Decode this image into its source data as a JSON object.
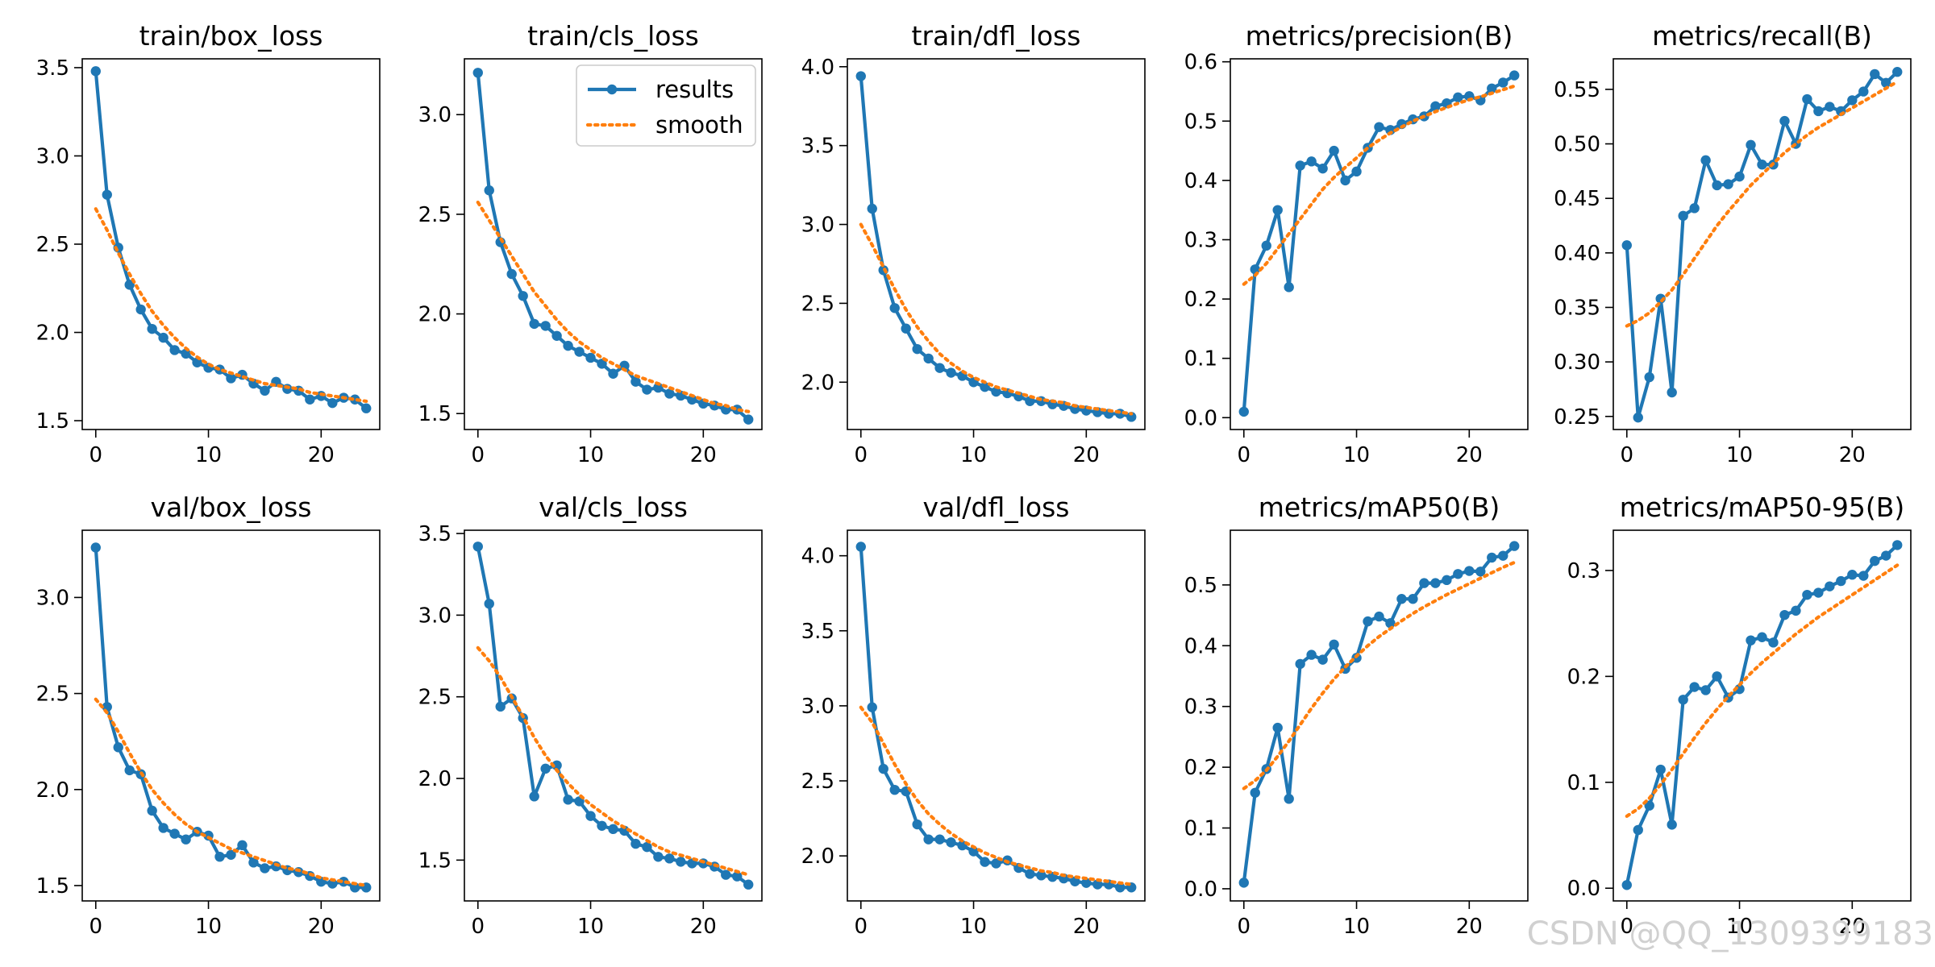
{
  "watermark": "CSDN @QQ_1309399183",
  "colors": {
    "results": "#1f77b4",
    "smooth": "#ff7f0e",
    "axis": "#000000"
  },
  "chart_data": [
    {
      "type": "line",
      "title": "train/box_loss",
      "x": [
        0,
        1,
        2,
        3,
        4,
        5,
        6,
        7,
        8,
        9,
        10,
        11,
        12,
        13,
        14,
        15,
        16,
        17,
        18,
        19,
        20,
        21,
        22,
        23,
        24
      ],
      "ylim": [
        1.45,
        3.55
      ],
      "yticks": [
        "1.5",
        "2.0",
        "2.5",
        "3.0",
        "3.5"
      ],
      "xticks": [
        "0",
        "10",
        "20"
      ],
      "series": [
        {
          "name": "results",
          "values": [
            3.48,
            2.78,
            2.48,
            2.27,
            2.13,
            2.02,
            1.97,
            1.9,
            1.88,
            1.83,
            1.8,
            1.79,
            1.74,
            1.76,
            1.71,
            1.67,
            1.72,
            1.68,
            1.67,
            1.62,
            1.64,
            1.6,
            1.63,
            1.62,
            1.57
          ]
        },
        {
          "name": "smooth",
          "values": [
            2.7,
            2.58,
            2.45,
            2.33,
            2.22,
            2.12,
            2.04,
            1.97,
            1.91,
            1.86,
            1.82,
            1.79,
            1.77,
            1.75,
            1.73,
            1.71,
            1.7,
            1.69,
            1.68,
            1.66,
            1.65,
            1.64,
            1.63,
            1.62,
            1.61
          ]
        }
      ],
      "legend": null
    },
    {
      "type": "line",
      "title": "train/cls_loss",
      "x": [
        0,
        1,
        2,
        3,
        4,
        5,
        6,
        7,
        8,
        9,
        10,
        11,
        12,
        13,
        14,
        15,
        16,
        17,
        18,
        19,
        20,
        21,
        22,
        23,
        24
      ],
      "ylim": [
        1.42,
        3.28
      ],
      "yticks": [
        "1.5",
        "2.0",
        "2.5",
        "3.0"
      ],
      "xticks": [
        "0",
        "10",
        "20"
      ],
      "series": [
        {
          "name": "results",
          "values": [
            3.21,
            2.62,
            2.36,
            2.2,
            2.09,
            1.95,
            1.94,
            1.89,
            1.84,
            1.81,
            1.78,
            1.75,
            1.7,
            1.74,
            1.66,
            1.62,
            1.63,
            1.6,
            1.59,
            1.57,
            1.55,
            1.54,
            1.52,
            1.52,
            1.47
          ]
        },
        {
          "name": "smooth",
          "values": [
            2.56,
            2.47,
            2.38,
            2.29,
            2.2,
            2.11,
            2.04,
            1.97,
            1.91,
            1.86,
            1.82,
            1.78,
            1.75,
            1.72,
            1.69,
            1.67,
            1.65,
            1.63,
            1.61,
            1.59,
            1.57,
            1.55,
            1.54,
            1.52,
            1.51
          ]
        }
      ],
      "legend": {
        "placement": "top-right",
        "entries": [
          "results",
          "smooth"
        ]
      }
    },
    {
      "type": "line",
      "title": "train/dfl_loss",
      "x": [
        0,
        1,
        2,
        3,
        4,
        5,
        6,
        7,
        8,
        9,
        10,
        11,
        12,
        13,
        14,
        15,
        16,
        17,
        18,
        19,
        20,
        21,
        22,
        23,
        24
      ],
      "ylim": [
        1.7,
        4.05
      ],
      "yticks": [
        "2.0",
        "2.5",
        "3.0",
        "3.5",
        "4.0"
      ],
      "xticks": [
        "0",
        "10",
        "20"
      ],
      "series": [
        {
          "name": "results",
          "values": [
            3.94,
            3.1,
            2.71,
            2.47,
            2.34,
            2.21,
            2.15,
            2.09,
            2.06,
            2.04,
            2.0,
            1.97,
            1.94,
            1.93,
            1.91,
            1.88,
            1.88,
            1.86,
            1.85,
            1.83,
            1.82,
            1.81,
            1.8,
            1.8,
            1.78
          ]
        },
        {
          "name": "smooth",
          "values": [
            3.0,
            2.87,
            2.73,
            2.59,
            2.46,
            2.35,
            2.26,
            2.18,
            2.12,
            2.07,
            2.03,
            2.0,
            1.97,
            1.95,
            1.93,
            1.91,
            1.89,
            1.88,
            1.87,
            1.85,
            1.84,
            1.83,
            1.82,
            1.81,
            1.8
          ]
        }
      ],
      "legend": null
    },
    {
      "type": "line",
      "title": "metrics/precision(B)",
      "x": [
        0,
        1,
        2,
        3,
        4,
        5,
        6,
        7,
        8,
        9,
        10,
        11,
        12,
        13,
        14,
        15,
        16,
        17,
        18,
        19,
        20,
        21,
        22,
        23,
        24
      ],
      "ylim": [
        -0.02,
        0.605
      ],
      "yticks": [
        "0.0",
        "0.1",
        "0.2",
        "0.3",
        "0.4",
        "0.5",
        "0.6"
      ],
      "xticks": [
        "0",
        "10",
        "20"
      ],
      "series": [
        {
          "name": "results",
          "values": [
            0.01,
            0.25,
            0.29,
            0.35,
            0.22,
            0.425,
            0.432,
            0.42,
            0.45,
            0.4,
            0.415,
            0.455,
            0.49,
            0.485,
            0.495,
            0.503,
            0.508,
            0.525,
            0.53,
            0.54,
            0.542,
            0.535,
            0.555,
            0.565,
            0.577
          ]
        },
        {
          "name": "smooth",
          "values": [
            0.225,
            0.24,
            0.26,
            0.285,
            0.31,
            0.335,
            0.36,
            0.385,
            0.405,
            0.422,
            0.438,
            0.455,
            0.468,
            0.48,
            0.49,
            0.5,
            0.508,
            0.516,
            0.523,
            0.53,
            0.536,
            0.541,
            0.547,
            0.553,
            0.559
          ]
        }
      ],
      "legend": null
    },
    {
      "type": "line",
      "title": "metrics/recall(B)",
      "x": [
        0,
        1,
        2,
        3,
        4,
        5,
        6,
        7,
        8,
        9,
        10,
        11,
        12,
        13,
        14,
        15,
        16,
        17,
        18,
        19,
        20,
        21,
        22,
        23,
        24
      ],
      "ylim": [
        0.238,
        0.578
      ],
      "yticks": [
        "0.25",
        "0.30",
        "0.35",
        "0.40",
        "0.45",
        "0.50",
        "0.55"
      ],
      "xticks": [
        "0",
        "10",
        "20"
      ],
      "series": [
        {
          "name": "results",
          "values": [
            0.407,
            0.249,
            0.286,
            0.358,
            0.272,
            0.434,
            0.441,
            0.485,
            0.462,
            0.463,
            0.47,
            0.499,
            0.481,
            0.481,
            0.521,
            0.5,
            0.541,
            0.53,
            0.534,
            0.53,
            0.54,
            0.548,
            0.564,
            0.556,
            0.566
          ]
        },
        {
          "name": "smooth",
          "values": [
            0.333,
            0.338,
            0.345,
            0.355,
            0.366,
            0.38,
            0.395,
            0.41,
            0.425,
            0.438,
            0.45,
            0.462,
            0.472,
            0.482,
            0.492,
            0.5,
            0.508,
            0.515,
            0.521,
            0.527,
            0.533,
            0.539,
            0.545,
            0.551,
            0.557
          ]
        }
      ],
      "legend": null
    },
    {
      "type": "line",
      "title": "val/box_loss",
      "x": [
        0,
        1,
        2,
        3,
        4,
        5,
        6,
        7,
        8,
        9,
        10,
        11,
        12,
        13,
        14,
        15,
        16,
        17,
        18,
        19,
        20,
        21,
        22,
        23,
        24
      ],
      "ylim": [
        1.42,
        3.35
      ],
      "yticks": [
        "1.5",
        "2.0",
        "2.5",
        "3.0"
      ],
      "xticks": [
        "0",
        "10",
        "20"
      ],
      "series": [
        {
          "name": "results",
          "values": [
            3.26,
            2.43,
            2.22,
            2.1,
            2.08,
            1.89,
            1.8,
            1.77,
            1.74,
            1.78,
            1.76,
            1.65,
            1.66,
            1.71,
            1.62,
            1.59,
            1.6,
            1.58,
            1.57,
            1.55,
            1.52,
            1.51,
            1.52,
            1.49,
            1.49
          ]
        },
        {
          "name": "smooth",
          "values": [
            2.47,
            2.4,
            2.3,
            2.19,
            2.09,
            2.0,
            1.93,
            1.87,
            1.82,
            1.78,
            1.75,
            1.72,
            1.69,
            1.67,
            1.65,
            1.63,
            1.61,
            1.59,
            1.58,
            1.56,
            1.54,
            1.53,
            1.52,
            1.51,
            1.5
          ]
        }
      ],
      "legend": null
    },
    {
      "type": "line",
      "title": "val/cls_loss",
      "x": [
        0,
        1,
        2,
        3,
        4,
        5,
        6,
        7,
        8,
        9,
        10,
        11,
        12,
        13,
        14,
        15,
        16,
        17,
        18,
        19,
        20,
        21,
        22,
        23,
        24
      ],
      "ylim": [
        1.25,
        3.52
      ],
      "yticks": [
        "1.5",
        "2.0",
        "2.5",
        "3.0",
        "3.5"
      ],
      "xticks": [
        "0",
        "10",
        "20"
      ],
      "series": [
        {
          "name": "results",
          "values": [
            3.42,
            3.07,
            2.44,
            2.49,
            2.37,
            1.89,
            2.06,
            2.08,
            1.87,
            1.86,
            1.77,
            1.71,
            1.69,
            1.68,
            1.6,
            1.58,
            1.52,
            1.51,
            1.49,
            1.48,
            1.48,
            1.46,
            1.41,
            1.4,
            1.35
          ]
        },
        {
          "name": "smooth",
          "values": [
            2.8,
            2.72,
            2.62,
            2.5,
            2.38,
            2.25,
            2.14,
            2.05,
            1.97,
            1.9,
            1.84,
            1.79,
            1.74,
            1.7,
            1.66,
            1.62,
            1.58,
            1.55,
            1.53,
            1.51,
            1.49,
            1.47,
            1.45,
            1.43,
            1.41
          ]
        }
      ],
      "legend": null
    },
    {
      "type": "line",
      "title": "val/dfl_loss",
      "x": [
        0,
        1,
        2,
        3,
        4,
        5,
        6,
        7,
        8,
        9,
        10,
        11,
        12,
        13,
        14,
        15,
        16,
        17,
        18,
        19,
        20,
        21,
        22,
        23,
        24
      ],
      "ylim": [
        1.7,
        4.17
      ],
      "yticks": [
        "2.0",
        "2.5",
        "3.0",
        "3.5",
        "4.0"
      ],
      "xticks": [
        "0",
        "10",
        "20"
      ],
      "series": [
        {
          "name": "results",
          "values": [
            4.06,
            2.99,
            2.58,
            2.44,
            2.43,
            2.21,
            2.11,
            2.11,
            2.09,
            2.07,
            2.03,
            1.96,
            1.95,
            1.97,
            1.92,
            1.88,
            1.87,
            1.86,
            1.85,
            1.83,
            1.82,
            1.81,
            1.81,
            1.79,
            1.79
          ]
        },
        {
          "name": "smooth",
          "values": [
            2.99,
            2.89,
            2.75,
            2.61,
            2.48,
            2.37,
            2.28,
            2.21,
            2.15,
            2.1,
            2.06,
            2.02,
            1.99,
            1.96,
            1.94,
            1.92,
            1.9,
            1.89,
            1.87,
            1.86,
            1.85,
            1.84,
            1.83,
            1.82,
            1.81
          ]
        }
      ],
      "legend": null
    },
    {
      "type": "line",
      "title": "metrics/mAP50(B)",
      "x": [
        0,
        1,
        2,
        3,
        4,
        5,
        6,
        7,
        8,
        9,
        10,
        11,
        12,
        13,
        14,
        15,
        16,
        17,
        18,
        19,
        20,
        21,
        22,
        23,
        24
      ],
      "ylim": [
        -0.02,
        0.59
      ],
      "yticks": [
        "0.0",
        "0.1",
        "0.2",
        "0.3",
        "0.4",
        "0.5"
      ],
      "xticks": [
        "0",
        "10",
        "20"
      ],
      "series": [
        {
          "name": "results",
          "values": [
            0.01,
            0.158,
            0.197,
            0.265,
            0.148,
            0.37,
            0.385,
            0.377,
            0.402,
            0.362,
            0.38,
            0.44,
            0.448,
            0.437,
            0.477,
            0.477,
            0.503,
            0.503,
            0.508,
            0.518,
            0.523,
            0.522,
            0.545,
            0.548,
            0.564
          ]
        },
        {
          "name": "smooth",
          "values": [
            0.165,
            0.178,
            0.195,
            0.218,
            0.243,
            0.27,
            0.297,
            0.322,
            0.345,
            0.365,
            0.383,
            0.4,
            0.415,
            0.428,
            0.441,
            0.453,
            0.464,
            0.474,
            0.484,
            0.493,
            0.502,
            0.511,
            0.52,
            0.529,
            0.537
          ]
        }
      ],
      "legend": null
    },
    {
      "type": "line",
      "title": "metrics/mAP50-95(B)",
      "x": [
        0,
        1,
        2,
        3,
        4,
        5,
        6,
        7,
        8,
        9,
        10,
        11,
        12,
        13,
        14,
        15,
        16,
        17,
        18,
        19,
        20,
        21,
        22,
        23,
        24
      ],
      "ylim": [
        -0.012,
        0.338
      ],
      "yticks": [
        "0.0",
        "0.1",
        "0.2",
        "0.3"
      ],
      "xticks": [
        "0",
        "10",
        "20"
      ],
      "series": [
        {
          "name": "results",
          "values": [
            0.003,
            0.055,
            0.078,
            0.112,
            0.06,
            0.178,
            0.19,
            0.187,
            0.2,
            0.18,
            0.188,
            0.234,
            0.237,
            0.232,
            0.258,
            0.262,
            0.277,
            0.279,
            0.285,
            0.29,
            0.296,
            0.295,
            0.309,
            0.314,
            0.324
          ]
        },
        {
          "name": "smooth",
          "values": [
            0.068,
            0.075,
            0.085,
            0.098,
            0.112,
            0.127,
            0.142,
            0.156,
            0.169,
            0.181,
            0.192,
            0.203,
            0.213,
            0.222,
            0.231,
            0.24,
            0.248,
            0.256,
            0.263,
            0.27,
            0.277,
            0.284,
            0.291,
            0.298,
            0.305
          ]
        }
      ],
      "legend": null
    }
  ]
}
